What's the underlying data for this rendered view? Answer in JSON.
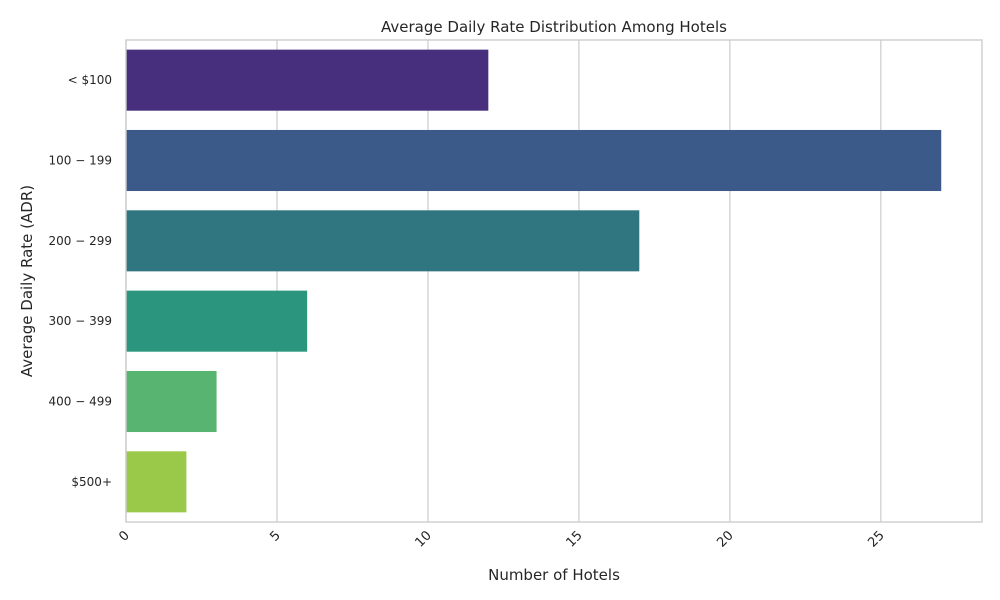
{
  "chart_data": {
    "type": "bar",
    "orientation": "horizontal",
    "title": "Average Daily Rate Distribution Among Hotels",
    "xlabel": "Number of Hotels",
    "ylabel": "Average Daily Rate (ADR)",
    "categories": [
      "< $100",
      "$100 - $199",
      "$200 - $299",
      "$300 - $399",
      "$400 - $499",
      "$500+"
    ],
    "tick_labels": [
      "< $100",
      "100 − 199",
      "200 − 299",
      "300 − 399",
      "400 − 499",
      "$500+"
    ],
    "values": [
      12,
      27,
      17,
      6,
      3,
      2
    ],
    "colors": [
      "#482878",
      "#3e4a89",
      "#31688e",
      "#26828e",
      "#1f9e89",
      "#35b779"
    ],
    "bar_colors": [
      "#472f7d",
      "#3b5a8a",
      "#2f7680",
      "#2c957d",
      "#57b571",
      "#9ac94a"
    ],
    "xlim": [
      0,
      28.35
    ],
    "xticks": [
      0,
      5,
      10,
      15,
      20,
      25
    ],
    "grid": true
  }
}
